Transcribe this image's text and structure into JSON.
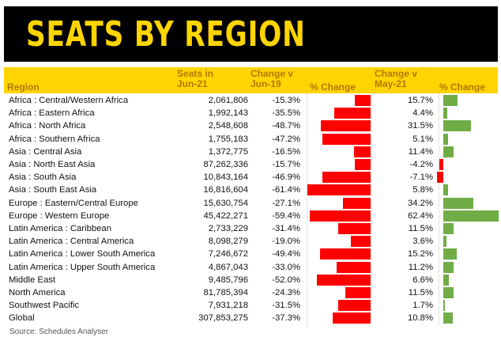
{
  "banner": {
    "title": "SEATS BY REGION"
  },
  "headers": {
    "region": "Region",
    "seats": "Seats in\nJun-21",
    "change_jun19": "Change v\nJun-19",
    "pct_change_1": "% Change",
    "change_may21": "Change v\nMay-21",
    "pct_change_2": "% Change"
  },
  "colors": {
    "banner_bg": "#000000",
    "accent": "#ffd500",
    "negative_bar": "#ff0000",
    "positive_bar": "#70ad47"
  },
  "rows": [
    {
      "region": "Africa : Central/Western Africa",
      "seats": "2,061,806",
      "change_jun19": "-15.3%",
      "change_may21": "15.7%",
      "v19": -15.3,
      "v21": 15.7
    },
    {
      "region": "Africa : Eastern Africa",
      "seats": "1,992,143",
      "change_jun19": "-35.5%",
      "change_may21": "4.4%",
      "v19": -35.5,
      "v21": 4.4
    },
    {
      "region": "Africa : North Africa",
      "seats": "2,548,608",
      "change_jun19": "-48.7%",
      "change_may21": "31.5%",
      "v19": -48.7,
      "v21": 31.5
    },
    {
      "region": "Africa : Southern Africa",
      "seats": "1,755,183",
      "change_jun19": "-47.2%",
      "change_may21": "5.1%",
      "v19": -47.2,
      "v21": 5.1
    },
    {
      "region": "Asia : Central Asia",
      "seats": "1,372,775",
      "change_jun19": "-16.5%",
      "change_may21": "11.4%",
      "v19": -16.5,
      "v21": 11.4
    },
    {
      "region": "Asia : North East Asia",
      "seats": "87,262,336",
      "change_jun19": "-15.7%",
      "change_may21": "-4.2%",
      "v19": -15.7,
      "v21": -4.2
    },
    {
      "region": "Asia : South Asia",
      "seats": "10,843,164",
      "change_jun19": "-46.9%",
      "change_may21": "-7.1%",
      "v19": -46.9,
      "v21": -7.1
    },
    {
      "region": "Asia : South East Asia",
      "seats": "16,816,604",
      "change_jun19": "-61.4%",
      "change_may21": "5.8%",
      "v19": -61.4,
      "v21": 5.8
    },
    {
      "region": "Europe : Eastern/Central Europe",
      "seats": "15,630,754",
      "change_jun19": "-27.1%",
      "change_may21": "34.2%",
      "v19": -27.1,
      "v21": 34.2
    },
    {
      "region": "Europe : Western Europe",
      "seats": "45,422,271",
      "change_jun19": "-59.4%",
      "change_may21": "62.4%",
      "v19": -59.4,
      "v21": 62.4
    },
    {
      "region": "Latin America : Caribbean",
      "seats": "2,733,229",
      "change_jun19": "-31.4%",
      "change_may21": "11.5%",
      "v19": -31.4,
      "v21": 11.5
    },
    {
      "region": "Latin America : Central America",
      "seats": "8,098,279",
      "change_jun19": "-19.0%",
      "change_may21": "3.6%",
      "v19": -19.0,
      "v21": 3.6
    },
    {
      "region": "Latin America : Lower South America",
      "seats": "7,246,672",
      "change_jun19": "-49.4%",
      "change_may21": "15.2%",
      "v19": -49.4,
      "v21": 15.2
    },
    {
      "region": "Latin America : Upper South America",
      "seats": "4,867,043",
      "change_jun19": "-33.0%",
      "change_may21": "11.2%",
      "v19": -33.0,
      "v21": 11.2
    },
    {
      "region": "Middle East",
      "seats": "9,485,796",
      "change_jun19": "-52.0%",
      "change_may21": "6.6%",
      "v19": -52.0,
      "v21": 6.6
    },
    {
      "region": "North America",
      "seats": "81,785,394",
      "change_jun19": "-24.3%",
      "change_may21": "11.5%",
      "v19": -24.3,
      "v21": 11.5
    },
    {
      "region": "Southwest Pacific",
      "seats": "7,931,218",
      "change_jun19": "-31.5%",
      "change_may21": "1.7%",
      "v19": -31.5,
      "v21": 1.7
    },
    {
      "region": "Global",
      "seats": "307,853,275",
      "change_jun19": "-37.3%",
      "change_may21": "10.8%",
      "v19": -37.3,
      "v21": 10.8
    }
  ],
  "source": "Source: Schedules Analyser"
}
